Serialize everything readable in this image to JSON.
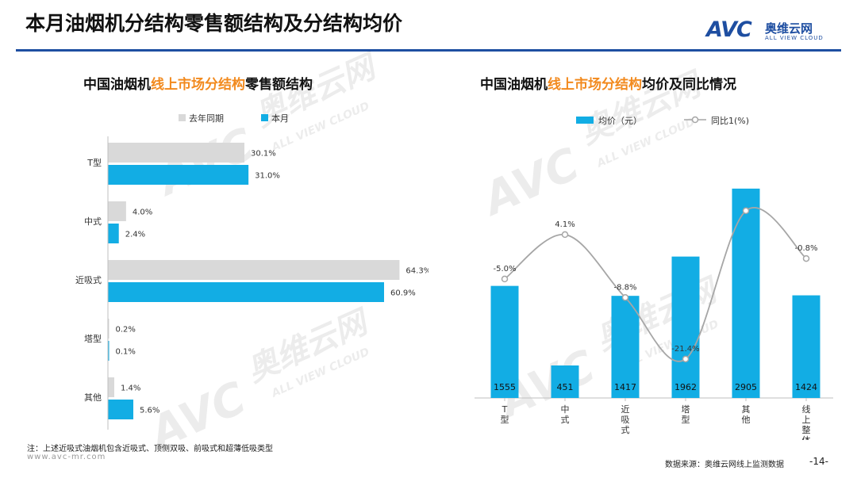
{
  "page": {
    "title": "本月油烟机分结构零售额结构及分结构均价",
    "logo": {
      "mark": "AVC",
      "cn": "奥维云网",
      "en": "ALL VIEW CLOUD"
    },
    "watermark": {
      "mark": "AVC",
      "cn": "奥维云网",
      "en": "ALL VIEW CLOUD"
    },
    "footnote": "注：上述近吸式油烟机包含近吸式、顶侧双吸、前吸式和超薄低吸类型",
    "site_url": "www.avc-mr.com",
    "source": "数据来源：奥维云网线上监测数据",
    "page_number": "-14-",
    "accent_color": "#1e4ea1",
    "highlight_color": "#f28a1e"
  },
  "left_subtitle": {
    "pre": "中国油烟机",
    "hl": "线上市场分结构",
    "post": "零售额结构"
  },
  "right_subtitle": {
    "pre": "中国油烟机",
    "hl": "线上市场分结构",
    "post": "均价及同比情况"
  },
  "chart_data": [
    {
      "type": "bar",
      "orientation": "horizontal",
      "categories": [
        "T型",
        "中式",
        "近吸式",
        "塔型",
        "其他"
      ],
      "series": [
        {
          "name": "去年同期",
          "color": "#d9d9d9",
          "values": [
            30.1,
            4.0,
            64.3,
            0.2,
            1.4
          ],
          "labels": [
            "30.1%",
            "4.0%",
            "64.3%",
            "0.2%",
            "1.4%"
          ]
        },
        {
          "name": "本月",
          "color": "#12ade4",
          "values": [
            31.0,
            2.4,
            60.9,
            0.1,
            5.6
          ],
          "labels": [
            "31.0%",
            "2.4%",
            "60.9%",
            "0.1%",
            "5.6%"
          ]
        }
      ],
      "legend": "top",
      "grid": false,
      "xlim": [
        0,
        70
      ]
    },
    {
      "type": "bar",
      "categories": [
        "T型",
        "中式",
        "近吸式",
        "塔型",
        "其他",
        "线上整体"
      ],
      "series": [
        {
          "name": "均价（元）",
          "type": "bar",
          "color": "#12ade4",
          "values": [
            1555,
            451,
            1417,
            1962,
            2905,
            1424
          ]
        },
        {
          "name": "同比1(%)",
          "type": "line",
          "color": "#a6a6a6",
          "values": [
            -5.0,
            4.1,
            -8.8,
            -21.4,
            9.0,
            -0.8
          ],
          "labels": [
            "-5.0%",
            "4.1%",
            "-8.8%",
            "-21.4%",
            "",
            "-0.8%"
          ]
        }
      ],
      "legend": "top",
      "grid": false,
      "ylim": [
        0,
        3300
      ],
      "y2lim": [
        -25,
        14
      ]
    }
  ]
}
